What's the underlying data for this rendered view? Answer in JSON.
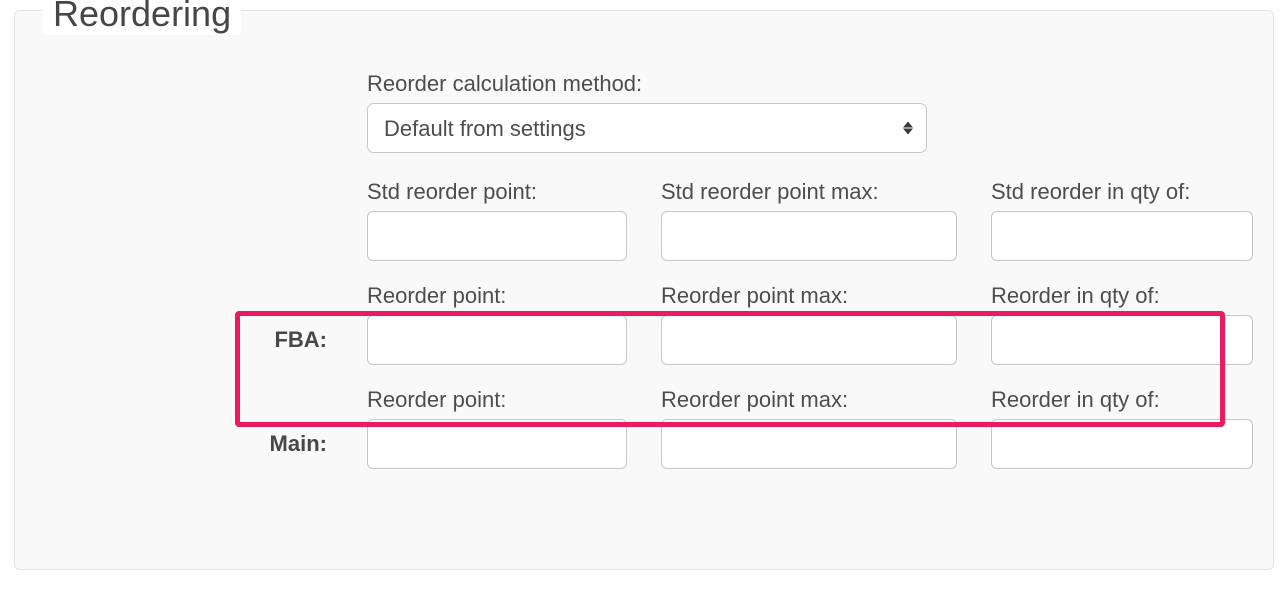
{
  "panel": {
    "title": "Reordering",
    "highlight_color": "#eb1b63"
  },
  "fields": {
    "calc_method": {
      "label": "Reorder calculation method:",
      "value": "Default from settings"
    },
    "std": {
      "point_label": "Std reorder point:",
      "point_value": "",
      "max_label": "Std reorder point max:",
      "max_value": "",
      "qty_label": "Std reorder in qty of:",
      "qty_value": ""
    }
  },
  "locations": [
    {
      "name": "FBA:",
      "highlighted": true,
      "point_label": "Reorder point:",
      "point_value": "",
      "max_label": "Reorder point max:",
      "max_value": "",
      "qty_label": "Reorder in qty of:",
      "qty_value": ""
    },
    {
      "name": "Main:",
      "highlighted": false,
      "point_label": "Reorder point:",
      "point_value": "",
      "max_label": "Reorder point max:",
      "max_value": "",
      "qty_label": "Reorder in qty of:",
      "qty_value": ""
    }
  ]
}
